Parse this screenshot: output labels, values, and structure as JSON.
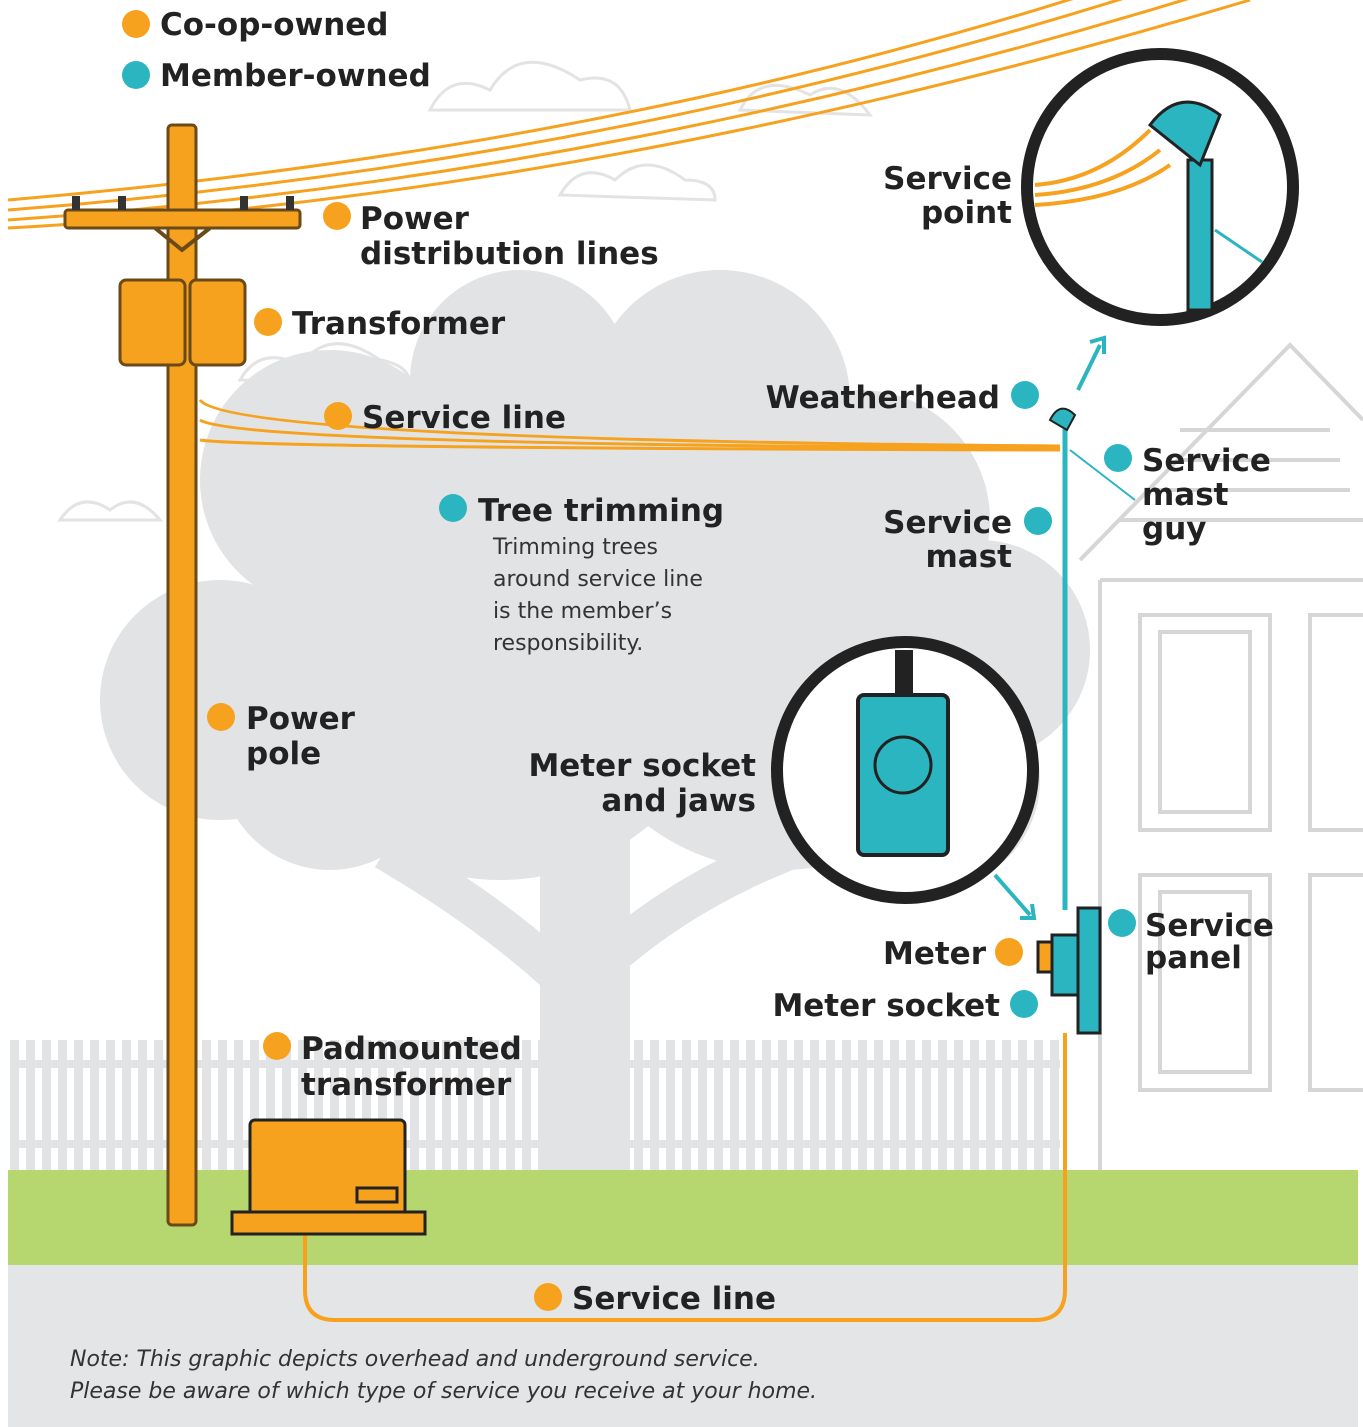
{
  "legend": [
    {
      "label": "Co-op-owned",
      "color": "#f6a21e"
    },
    {
      "label": "Member-owned",
      "color": "#2bb5c0"
    }
  ],
  "labels": [
    {
      "lines": [
        "Power",
        "distribution lines"
      ],
      "color": "#f6a21e"
    },
    {
      "lines": [
        "Transformer"
      ],
      "color": "#f6a21e"
    },
    {
      "lines": [
        "Service line"
      ],
      "color": "#f6a21e"
    },
    {
      "lines": [
        "Weatherhead"
      ],
      "color": "#2bb5c0"
    },
    {
      "lines": [
        "Service",
        "point"
      ]
    },
    {
      "lines": [
        "Service",
        "mast",
        "guy"
      ],
      "color": "#2bb5c0"
    },
    {
      "lines": [
        "Tree trimming"
      ],
      "color": "#2bb5c0",
      "description": [
        "Trimming trees",
        "around service line",
        "is the member’s",
        "responsibility."
      ]
    },
    {
      "lines": [
        "Service",
        "mast"
      ],
      "color": "#2bb5c0"
    },
    {
      "lines": [
        "Power",
        "pole"
      ],
      "color": "#f6a21e"
    },
    {
      "lines": [
        "Meter socket",
        "and jaws"
      ]
    },
    {
      "lines": [
        "Meter"
      ],
      "color": "#f6a21e"
    },
    {
      "lines": [
        "Meter socket"
      ],
      "color": "#2bb5c0"
    },
    {
      "lines": [
        "Service",
        "panel"
      ],
      "color": "#2bb5c0"
    },
    {
      "lines": [
        "Padmounted",
        "transformer"
      ],
      "color": "#f6a21e"
    },
    {
      "lines": [
        "Service line"
      ],
      "color": "#f6a21e"
    }
  ],
  "note": [
    "Note: This graphic depicts overhead and underground service.",
    "Please be aware of which type of service you receive at your home."
  ]
}
